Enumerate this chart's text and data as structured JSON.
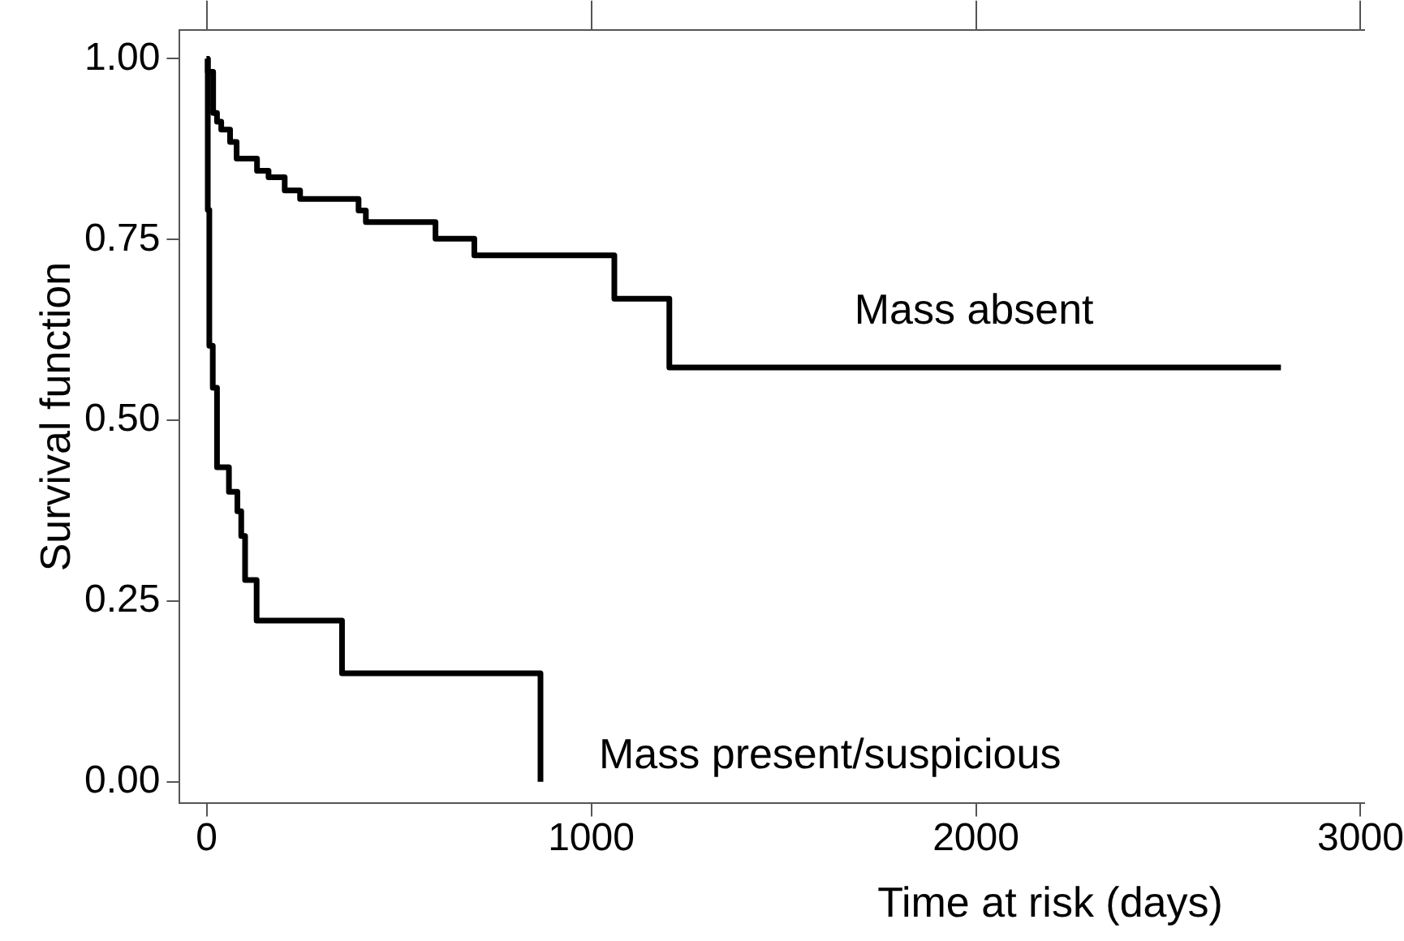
{
  "chart_data": {
    "type": "step",
    "xlabel": "Time at risk (days)",
    "ylabel": "Survival function",
    "xlim": [
      -70,
      3010
    ],
    "ylim": [
      -0.03,
      1.04
    ],
    "xticks": [
      0,
      1000,
      2000,
      3000
    ],
    "yticks": [
      {
        "value": 0,
        "label": "0.00"
      },
      {
        "value": 0.25,
        "label": "0.25"
      },
      {
        "value": 0.5,
        "label": "0.50"
      },
      {
        "value": 0.75,
        "label": "0.75"
      },
      {
        "value": 1,
        "label": "1.00"
      }
    ],
    "grid": false,
    "legend": false,
    "marker": "none",
    "series": [
      {
        "name": "Mass absent",
        "color": "#000000",
        "x": [
          0,
          3,
          17,
          27,
          38,
          61,
          78,
          131,
          161,
          203,
          243,
          395,
          414,
          595,
          696,
          1060,
          1203,
          2793
        ],
        "values": [
          1.0,
          0.982,
          0.925,
          0.913,
          0.902,
          0.885,
          0.862,
          0.845,
          0.836,
          0.818,
          0.806,
          0.79,
          0.774,
          0.751,
          0.728,
          0.668,
          0.573,
          0.573
        ]
      },
      {
        "name": "Mass present/suspicious",
        "color": "#000000",
        "x": [
          0,
          3,
          7,
          16,
          27,
          58,
          80,
          90,
          100,
          130,
          352,
          868
        ],
        "values": [
          1.0,
          0.791,
          0.603,
          0.545,
          0.435,
          0.401,
          0.374,
          0.34,
          0.279,
          0.223,
          0.15,
          0.0
        ]
      }
    ]
  }
}
